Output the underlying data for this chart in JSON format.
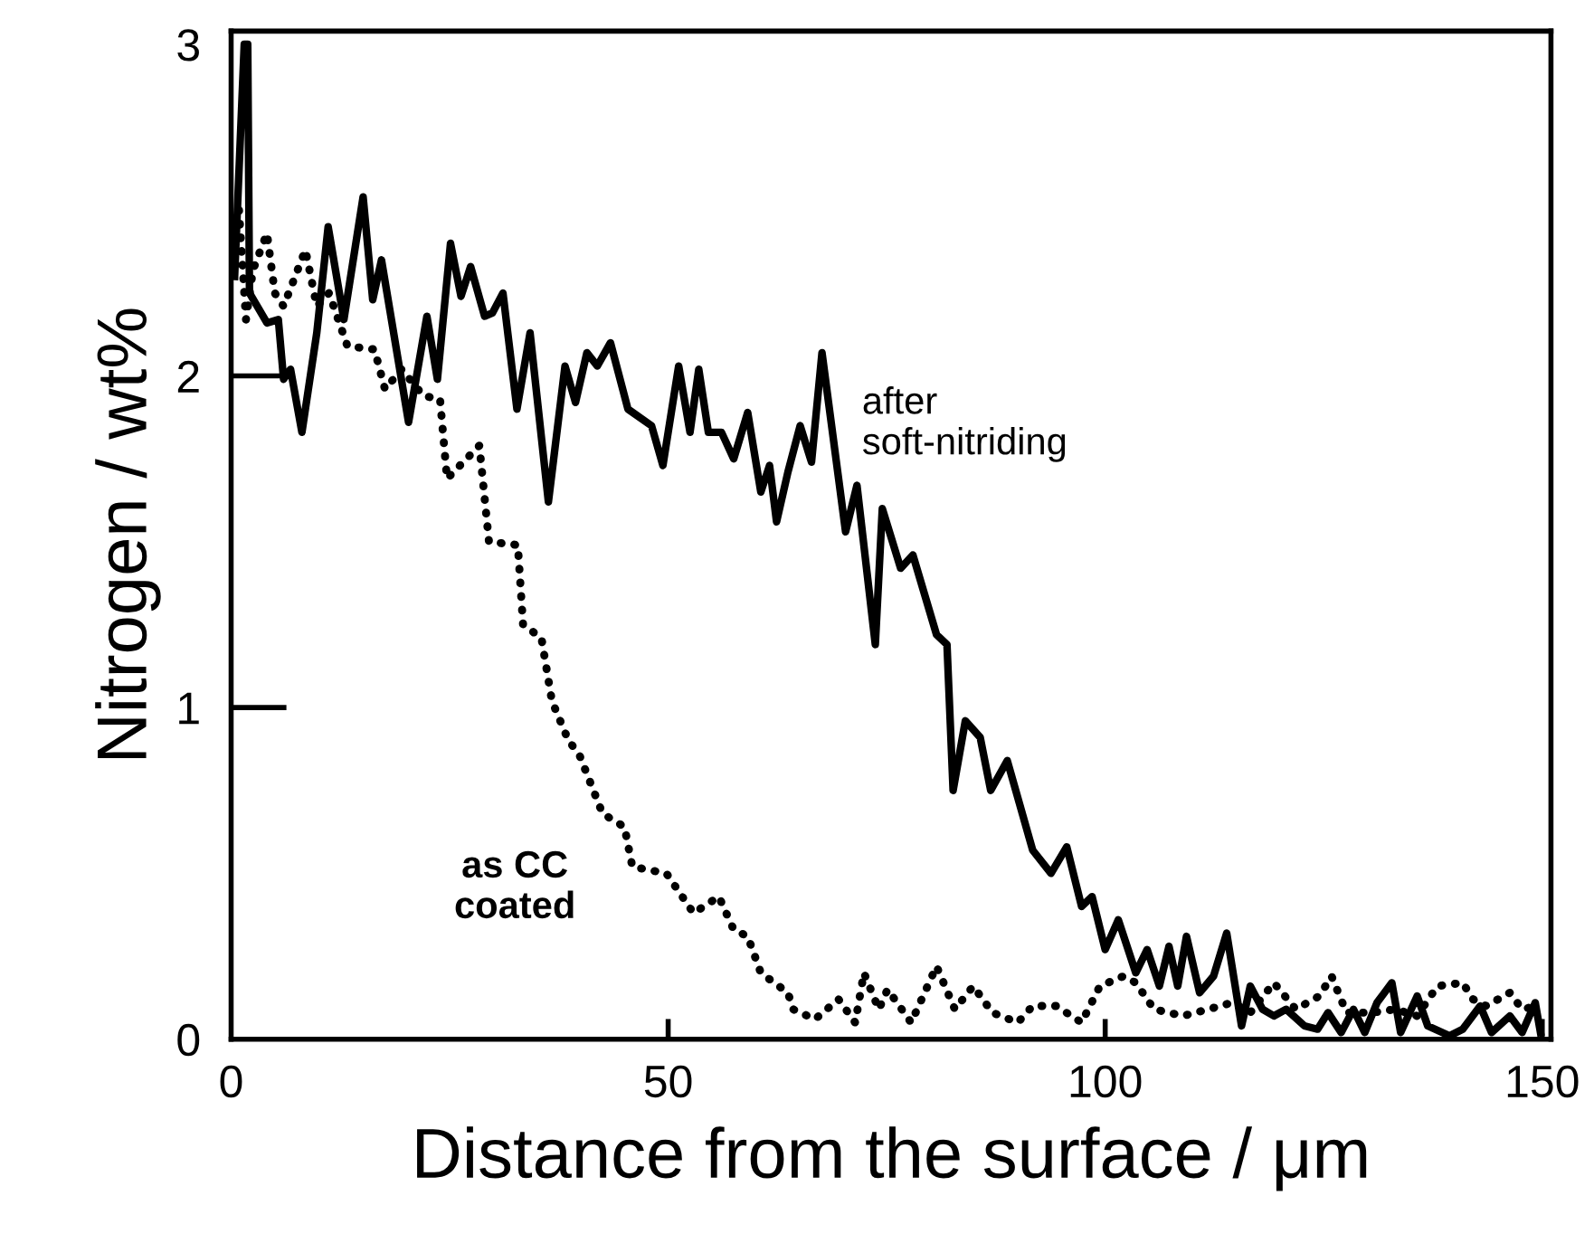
{
  "chart_data": {
    "type": "line",
    "xlabel": "Distance from the surface / μm",
    "ylabel": "Nitrogen / wt%",
    "xlim": [
      0,
      151
    ],
    "ylim": [
      0,
      3.04
    ],
    "xticks": [
      0,
      50,
      100,
      150
    ],
    "yticks": [
      0,
      1,
      2,
      3
    ],
    "grid": false,
    "legend": false,
    "marker": "none",
    "series": [
      {
        "color": "#000000",
        "line_style": "solid",
        "x": [
          0.4,
          1.5,
          1.9,
          2.1,
          4.1,
          5.4,
          6.0,
          6.8,
          8.1,
          9.8,
          11.1,
          12.9,
          15.1,
          16.2,
          17.2,
          20.3,
          22.4,
          23.6,
          25.1,
          26.3,
          27.4,
          29.0,
          29.9,
          31.1,
          32.7,
          34.2,
          36.3,
          38.2,
          39.4,
          40.7,
          41.9,
          43.4,
          45.4,
          48.1,
          49.4,
          51.2,
          52.5,
          53.5,
          54.6,
          56.1,
          57.5,
          59.1,
          60.6,
          61.6,
          62.4,
          63.7,
          65.1,
          66.4,
          67.6,
          70.3,
          71.6,
          73.7,
          74.5,
          76.6,
          78.0,
          80.7,
          81.9,
          82.6,
          84.0,
          85.7,
          86.9,
          88.8,
          91.7,
          93.8,
          95.6,
          97.3,
          98.5,
          100.0,
          101.5,
          103.5,
          104.8,
          106.2,
          107.3,
          108.3,
          109.3,
          110.8,
          112.4,
          113.9,
          115.6,
          116.6,
          118.0,
          119.3,
          120.7,
          122.8,
          124.3,
          125.5,
          127.0,
          128.4,
          129.7,
          131.1,
          132.8,
          133.8,
          135.7,
          136.9,
          139.4,
          140.9,
          142.9,
          144.2,
          146.3,
          147.7,
          149.2,
          149.8
        ],
        "values": [
          2.3,
          3.0,
          3.0,
          2.25,
          2.16,
          2.17,
          1.99,
          2.02,
          1.83,
          2.13,
          2.45,
          2.17,
          2.54,
          2.23,
          2.35,
          1.86,
          2.18,
          1.99,
          2.4,
          2.24,
          2.33,
          2.18,
          2.19,
          2.25,
          1.9,
          2.13,
          1.62,
          2.03,
          1.92,
          2.07,
          2.03,
          2.1,
          1.9,
          1.85,
          1.73,
          2.03,
          1.83,
          2.02,
          1.83,
          1.83,
          1.75,
          1.89,
          1.65,
          1.73,
          1.56,
          1.71,
          1.85,
          1.74,
          2.07,
          1.53,
          1.67,
          1.19,
          1.6,
          1.42,
          1.46,
          1.22,
          1.19,
          0.75,
          0.96,
          0.91,
          0.75,
          0.84,
          0.57,
          0.5,
          0.58,
          0.4,
          0.43,
          0.27,
          0.36,
          0.2,
          0.27,
          0.16,
          0.28,
          0.16,
          0.31,
          0.14,
          0.19,
          0.32,
          0.04,
          0.16,
          0.09,
          0.07,
          0.09,
          0.04,
          0.03,
          0.08,
          0.02,
          0.09,
          0.02,
          0.11,
          0.17,
          0.02,
          0.13,
          0.04,
          0.01,
          0.03,
          0.1,
          0.02,
          0.07,
          0.02,
          0.11,
          0.02
        ]
      },
      {
        "color": "#000000",
        "line_style": "dotted",
        "x": [
          0.9,
          1.7,
          2.5,
          4.1,
          5.0,
          6.0,
          8.5,
          9.8,
          11.2,
          13.3,
          16.4,
          17.6,
          19.5,
          22.0,
          23.9,
          24.7,
          28.4,
          29.5,
          32.8,
          33.4,
          35.5,
          36.7,
          38.6,
          39.8,
          42.5,
          45.0,
          45.9,
          49.8,
          52.9,
          55.8,
          57.5,
          59.1,
          60.6,
          63.7,
          64.3,
          66.8,
          69.5,
          71.4,
          72.4,
          74.1,
          75.1,
          77.8,
          80.7,
          82.8,
          84.9,
          87.1,
          90.0,
          91.7,
          94.4,
          97.3,
          99.4,
          102.1,
          103.5,
          105.6,
          108.9,
          111.8,
          114.5,
          116.6,
          119.3,
          121.8,
          124.5,
          125.9,
          127.6,
          130.5,
          133.2,
          135.7,
          138.0,
          140.9,
          142.1,
          143.6,
          146.3,
          147.7,
          149.4
        ],
        "values": [
          2.5,
          2.17,
          2.32,
          2.43,
          2.25,
          2.21,
          2.38,
          2.21,
          2.25,
          2.09,
          2.08,
          1.96,
          2.02,
          1.94,
          1.93,
          1.69,
          1.79,
          1.5,
          1.49,
          1.25,
          1.21,
          1.02,
          0.9,
          0.86,
          0.68,
          0.64,
          0.52,
          0.5,
          0.38,
          0.43,
          0.33,
          0.31,
          0.2,
          0.14,
          0.09,
          0.06,
          0.12,
          0.05,
          0.2,
          0.09,
          0.15,
          0.05,
          0.22,
          0.09,
          0.16,
          0.08,
          0.05,
          0.1,
          0.1,
          0.05,
          0.16,
          0.19,
          0.17,
          0.09,
          0.07,
          0.09,
          0.11,
          0.08,
          0.17,
          0.09,
          0.13,
          0.19,
          0.08,
          0.08,
          0.09,
          0.07,
          0.16,
          0.17,
          0.12,
          0.1,
          0.14,
          0.09,
          0.1
        ]
      }
    ],
    "annotations": [
      "after\nsoft-nitriding",
      "as CC\ncoated"
    ]
  }
}
